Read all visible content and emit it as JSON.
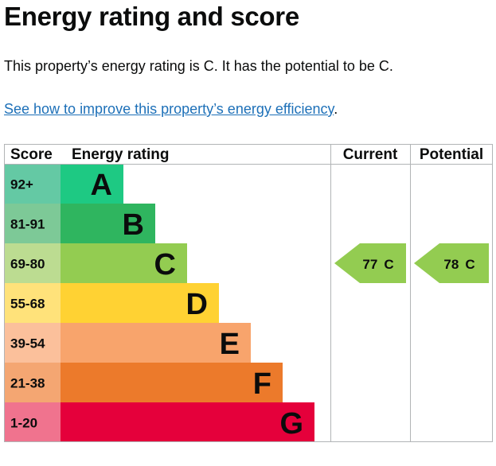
{
  "page": {
    "title": "Energy rating and score",
    "summary": "This property’s energy rating is C. It has the potential to be C.",
    "improve_link": "See how to improve this property’s energy efficiency",
    "improve_link_suffix": "."
  },
  "table": {
    "headers": {
      "score": "Score",
      "energy_rating": "Energy rating",
      "current": "Current",
      "potential": "Potential"
    },
    "bands": [
      {
        "score": "92+",
        "letter": "A",
        "color": "#1ec983",
        "score_bg": "#64c9a4"
      },
      {
        "score": "81-91",
        "letter": "B",
        "color": "#2fb55f",
        "score_bg": "#7dc997"
      },
      {
        "score": "69-80",
        "letter": "C",
        "color": "#93cc51",
        "score_bg": "#bcdc91"
      },
      {
        "score": "55-68",
        "letter": "D",
        "color": "#ffd233",
        "score_bg": "#ffe27a"
      },
      {
        "score": "39-54",
        "letter": "E",
        "color": "#f8a46c",
        "score_bg": "#fbc09b"
      },
      {
        "score": "21-38",
        "letter": "F",
        "color": "#ec7a2b",
        "score_bg": "#f4a672"
      },
      {
        "score": "1-20",
        "letter": "G",
        "color": "#e5003b",
        "score_bg": "#f0738e"
      }
    ],
    "current": {
      "score": "77",
      "letter": "C",
      "band_index": 2,
      "color": "#93cc51"
    },
    "potential": {
      "score": "78",
      "letter": "C",
      "band_index": 2,
      "color": "#93cc51"
    }
  }
}
